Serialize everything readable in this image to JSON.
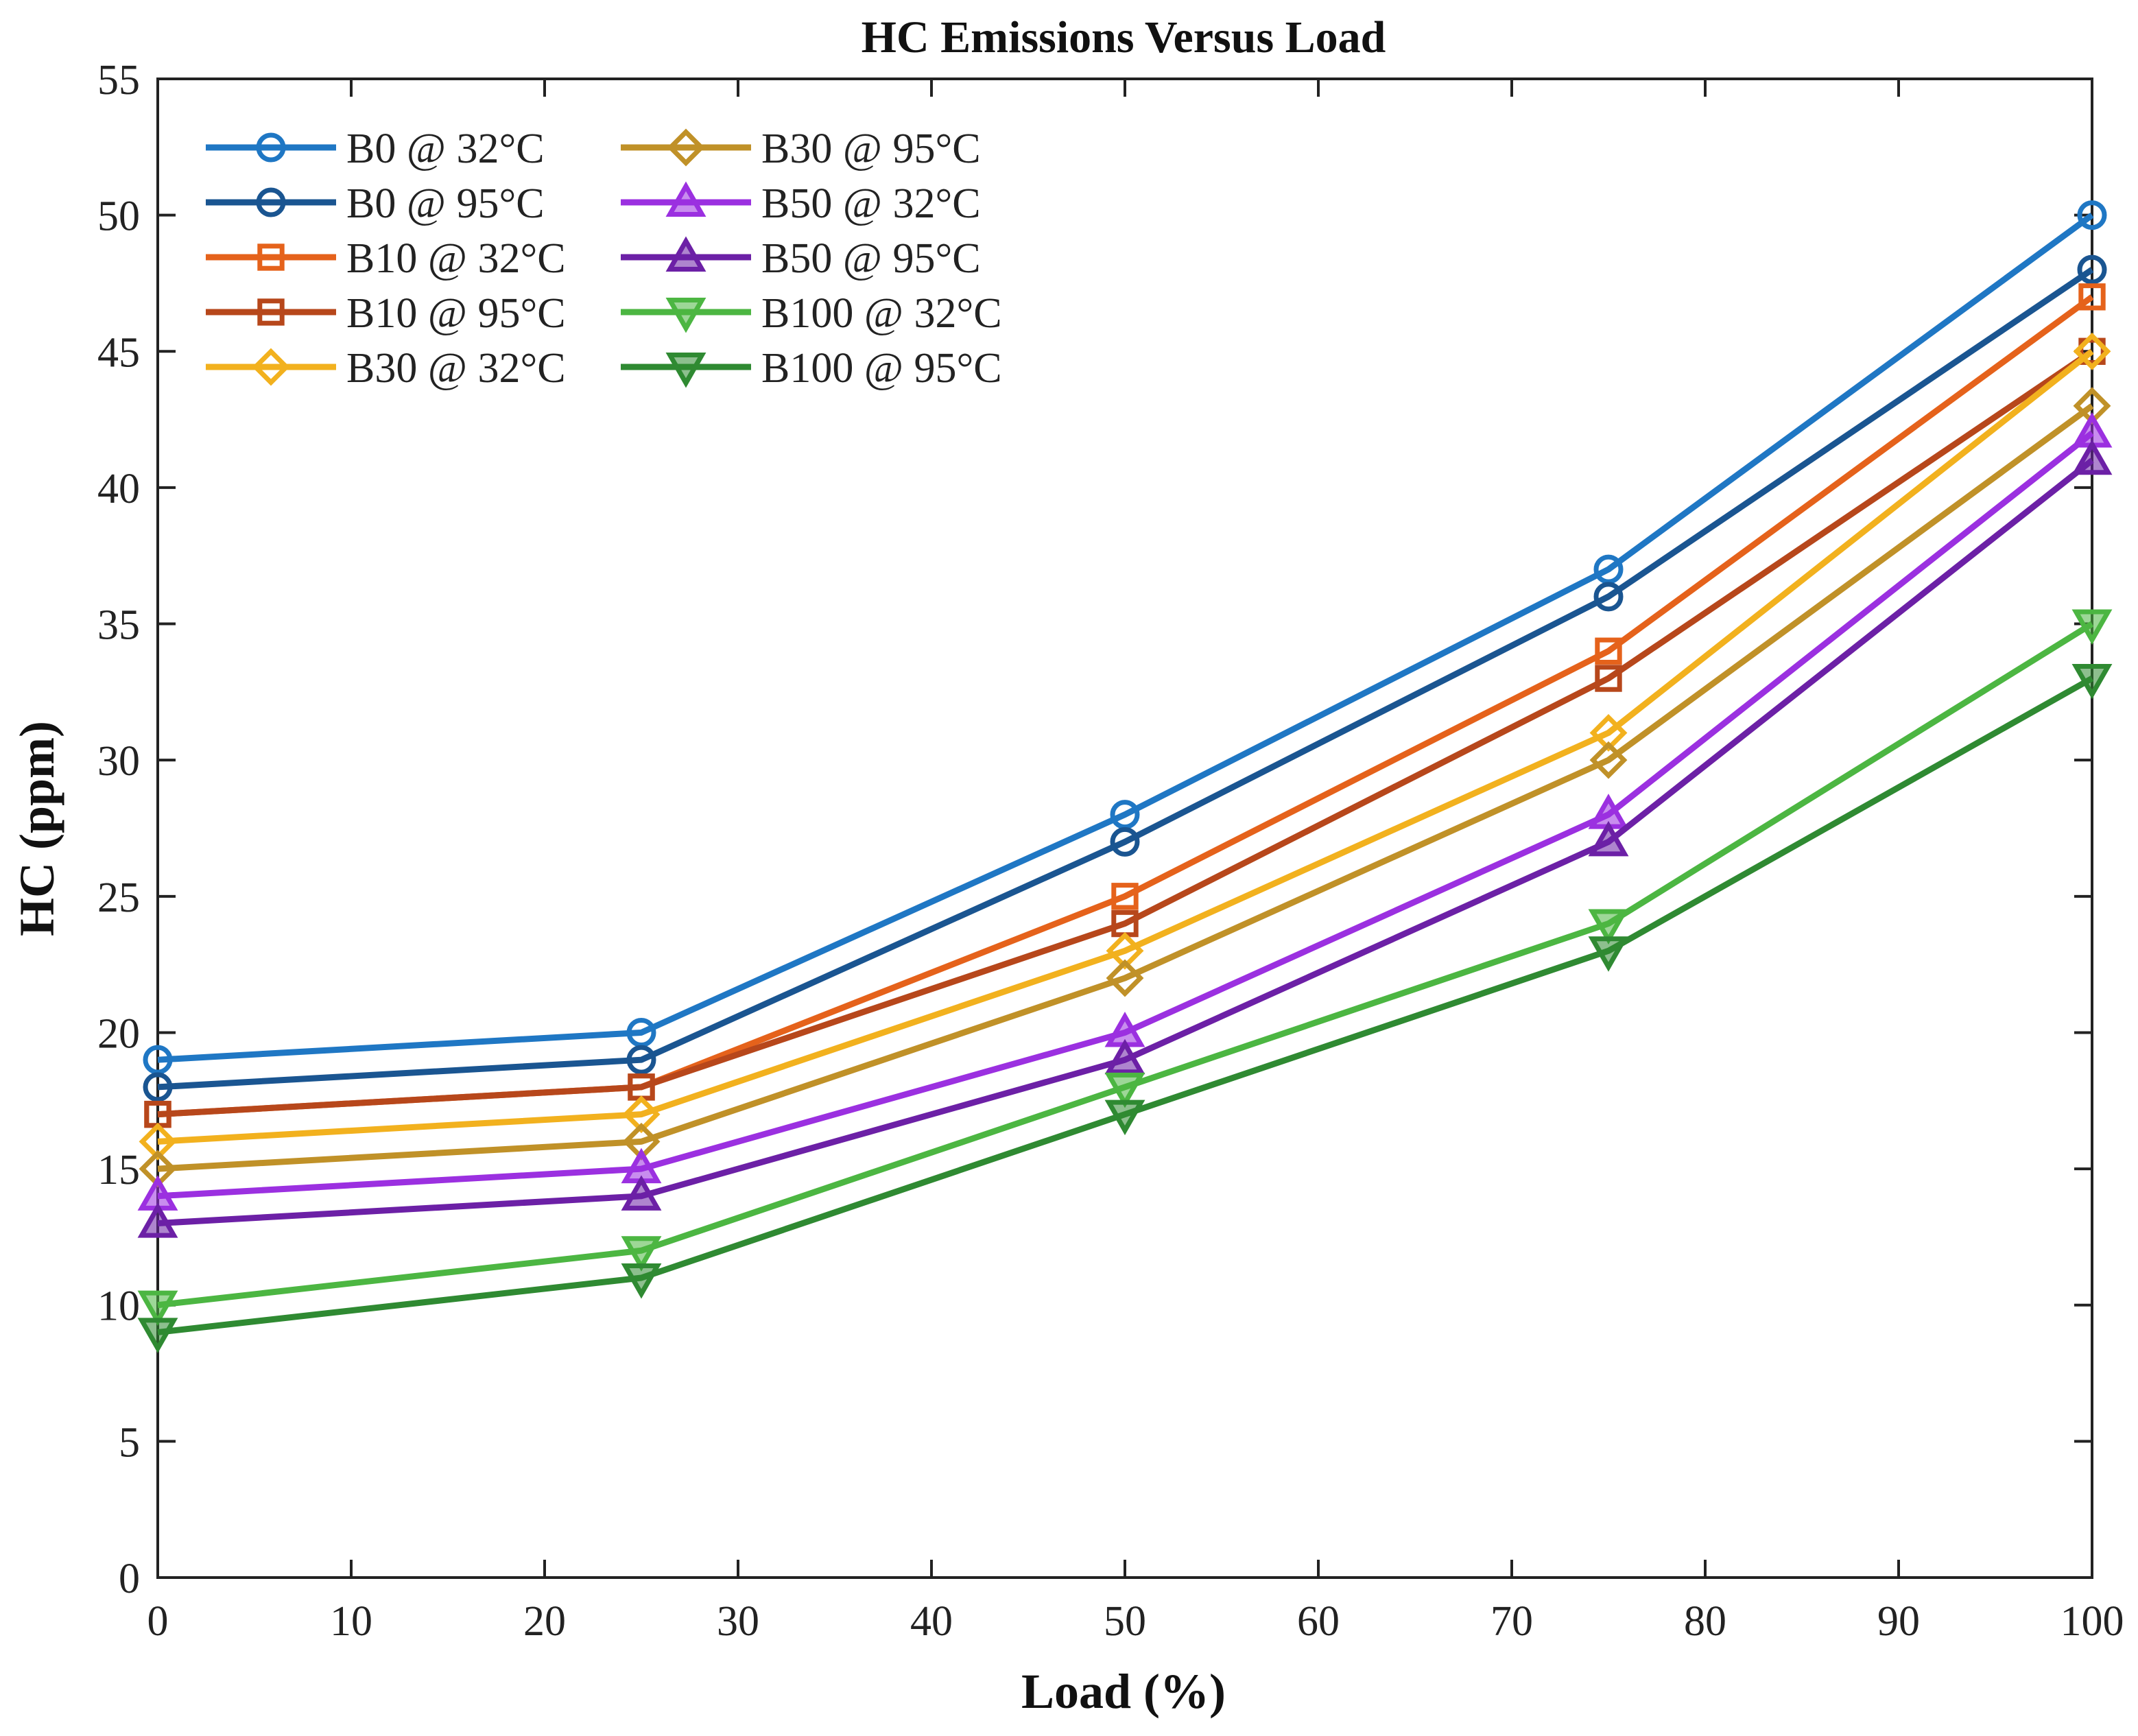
{
  "chart_data": {
    "type": "line",
    "title": "HC Emissions Versus Load",
    "xlabel": "Load (%)",
    "ylabel": "HC (ppm)",
    "xlim": [
      0,
      100
    ],
    "ylim": [
      0,
      55
    ],
    "xticks": [
      0,
      10,
      20,
      30,
      40,
      50,
      60,
      70,
      80,
      90,
      100
    ],
    "yticks": [
      0,
      5,
      10,
      15,
      20,
      25,
      30,
      35,
      40,
      45,
      50,
      55
    ],
    "grid": false,
    "legend_position": "top-left",
    "x": [
      0,
      25,
      50,
      75,
      100
    ],
    "series": [
      {
        "name": "B0 @ 32°C",
        "color": "#1f77c4",
        "marker": "circle",
        "values": [
          19,
          20,
          28,
          37,
          50
        ]
      },
      {
        "name": "B0 @ 95°C",
        "color": "#1a5591",
        "marker": "circle",
        "values": [
          18,
          19,
          27,
          36,
          48
        ]
      },
      {
        "name": "B10 @ 32°C",
        "color": "#e5621b",
        "marker": "square",
        "values": [
          17,
          18,
          25,
          34,
          47
        ]
      },
      {
        "name": "B10 @ 95°C",
        "color": "#b7471b",
        "marker": "square",
        "values": [
          17,
          18,
          24,
          33,
          45
        ]
      },
      {
        "name": "B30 @ 32°C",
        "color": "#f2b11e",
        "marker": "diamond",
        "values": [
          16,
          17,
          23,
          31,
          45
        ]
      },
      {
        "name": "B30 @ 95°C",
        "color": "#c09128",
        "marker": "diamond",
        "values": [
          15,
          16,
          22,
          30,
          43
        ]
      },
      {
        "name": "B50 @ 32°C",
        "color": "#9b30e0",
        "marker": "triangle-up",
        "values": [
          14,
          15,
          20,
          28,
          42
        ]
      },
      {
        "name": "B50 @ 95°C",
        "color": "#6c20a6",
        "marker": "triangle-up",
        "values": [
          13,
          14,
          19,
          27,
          41
        ]
      },
      {
        "name": "B100 @ 32°C",
        "color": "#4cb642",
        "marker": "triangle-down",
        "values": [
          10,
          12,
          18,
          24,
          35
        ]
      },
      {
        "name": "B100 @ 95°C",
        "color": "#2f8a32",
        "marker": "triangle-down",
        "values": [
          9,
          11,
          17,
          23,
          33
        ]
      }
    ]
  }
}
